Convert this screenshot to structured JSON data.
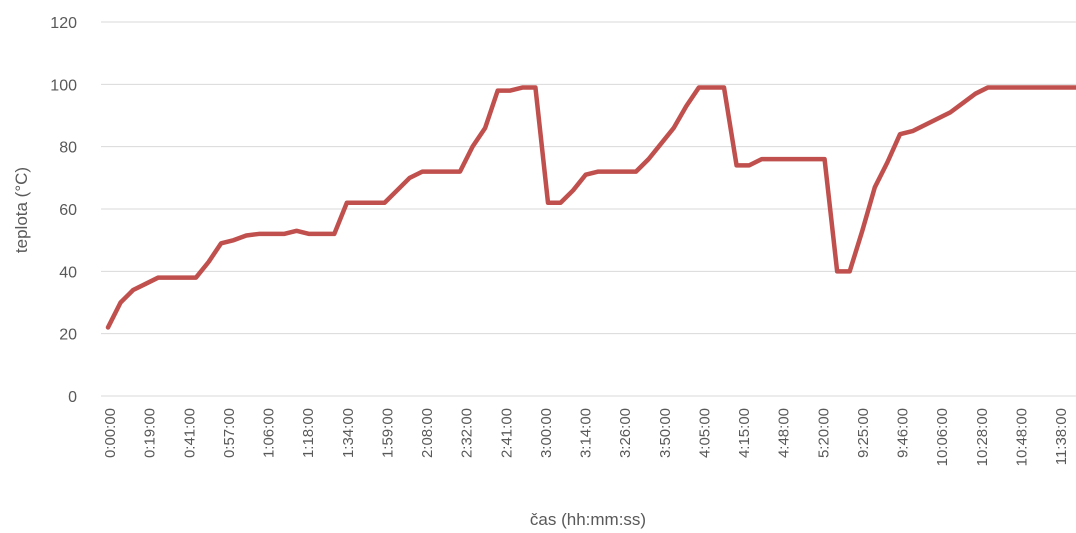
{
  "chart_data": {
    "type": "line",
    "title": "",
    "xlabel": "čas (hh:mm:ss)",
    "ylabel": "teplota (°C)",
    "ylim": [
      0,
      120
    ],
    "y_ticks": [
      "0",
      "20",
      "40",
      "60",
      "80",
      "100",
      "120"
    ],
    "grid": "horizontal",
    "line_color": "#c0504d",
    "grid_color": "#d9d9d9",
    "text_color": "#595959",
    "x_tick_labels": [
      "0:00:00",
      "0:19:00",
      "0:41:00",
      "0:57:00",
      "1:06:00",
      "1:18:00",
      "1:34:00",
      "1:59:00",
      "2:08:00",
      "2:32:00",
      "2:41:00",
      "3:00:00",
      "3:14:00",
      "3:26:00",
      "3:50:00",
      "4:05:00",
      "4:15:00",
      "4:48:00",
      "5:20:00",
      "9:25:00",
      "9:46:00",
      "10:06:00",
      "10:28:00",
      "10:48:00",
      "11:38:00"
    ],
    "series": [
      {
        "values": [
          22,
          30,
          34,
          36,
          38,
          38,
          38,
          38,
          43,
          49,
          50,
          51.5,
          52,
          52,
          52,
          53,
          52,
          52,
          52,
          62,
          62,
          62,
          62,
          66,
          70,
          72,
          72,
          72,
          72,
          80,
          86,
          98,
          98,
          99,
          99,
          62,
          62,
          66,
          71,
          72,
          72,
          72,
          72,
          76,
          81,
          86,
          93,
          99,
          99,
          99,
          74,
          74,
          76,
          76,
          76,
          76,
          76,
          76,
          40,
          40,
          53,
          67,
          75,
          84,
          85,
          87,
          89,
          91,
          94,
          97,
          99,
          99,
          99,
          99,
          99,
          99,
          99,
          99
        ]
      }
    ]
  }
}
